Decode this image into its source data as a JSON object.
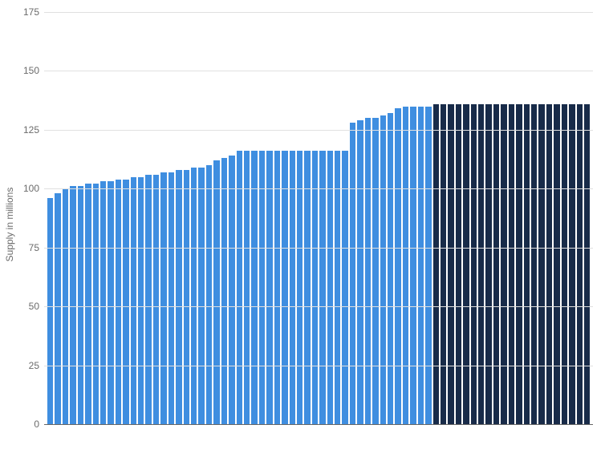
{
  "chart": {
    "type": "bar",
    "ylabel": "Supply in millions",
    "label_fontsize": 12,
    "ylim": [
      0,
      175
    ],
    "ytick_step": 25,
    "yticks": [
      0,
      25,
      50,
      75,
      100,
      125,
      150,
      175
    ],
    "background_color": "#ffffff",
    "grid_color": "#e0e0e0",
    "axis_color": "#666666",
    "tick_label_color": "#6b6b6b",
    "series": [
      {
        "value": 96,
        "color": "#3f8ee0"
      },
      {
        "value": 98,
        "color": "#3f8ee0"
      },
      {
        "value": 100,
        "color": "#3f8ee0"
      },
      {
        "value": 101,
        "color": "#3f8ee0"
      },
      {
        "value": 101,
        "color": "#3f8ee0"
      },
      {
        "value": 102,
        "color": "#3f8ee0"
      },
      {
        "value": 102,
        "color": "#3f8ee0"
      },
      {
        "value": 103,
        "color": "#3f8ee0"
      },
      {
        "value": 103,
        "color": "#3f8ee0"
      },
      {
        "value": 104,
        "color": "#3f8ee0"
      },
      {
        "value": 104,
        "color": "#3f8ee0"
      },
      {
        "value": 105,
        "color": "#3f8ee0"
      },
      {
        "value": 105,
        "color": "#3f8ee0"
      },
      {
        "value": 106,
        "color": "#3f8ee0"
      },
      {
        "value": 106,
        "color": "#3f8ee0"
      },
      {
        "value": 107,
        "color": "#3f8ee0"
      },
      {
        "value": 107,
        "color": "#3f8ee0"
      },
      {
        "value": 108,
        "color": "#3f8ee0"
      },
      {
        "value": 108,
        "color": "#3f8ee0"
      },
      {
        "value": 109,
        "color": "#3f8ee0"
      },
      {
        "value": 109,
        "color": "#3f8ee0"
      },
      {
        "value": 110,
        "color": "#3f8ee0"
      },
      {
        "value": 112,
        "color": "#3f8ee0"
      },
      {
        "value": 113,
        "color": "#3f8ee0"
      },
      {
        "value": 114,
        "color": "#3f8ee0"
      },
      {
        "value": 116,
        "color": "#3f8ee0"
      },
      {
        "value": 116,
        "color": "#3f8ee0"
      },
      {
        "value": 116,
        "color": "#3f8ee0"
      },
      {
        "value": 116,
        "color": "#3f8ee0"
      },
      {
        "value": 116,
        "color": "#3f8ee0"
      },
      {
        "value": 116,
        "color": "#3f8ee0"
      },
      {
        "value": 116,
        "color": "#3f8ee0"
      },
      {
        "value": 116,
        "color": "#3f8ee0"
      },
      {
        "value": 116,
        "color": "#3f8ee0"
      },
      {
        "value": 116,
        "color": "#3f8ee0"
      },
      {
        "value": 116,
        "color": "#3f8ee0"
      },
      {
        "value": 116,
        "color": "#3f8ee0"
      },
      {
        "value": 116,
        "color": "#3f8ee0"
      },
      {
        "value": 116,
        "color": "#3f8ee0"
      },
      {
        "value": 116,
        "color": "#3f8ee0"
      },
      {
        "value": 128,
        "color": "#3f8ee0"
      },
      {
        "value": 129,
        "color": "#3f8ee0"
      },
      {
        "value": 130,
        "color": "#3f8ee0"
      },
      {
        "value": 130,
        "color": "#3f8ee0"
      },
      {
        "value": 131,
        "color": "#3f8ee0"
      },
      {
        "value": 132,
        "color": "#3f8ee0"
      },
      {
        "value": 134,
        "color": "#3f8ee0"
      },
      {
        "value": 135,
        "color": "#3f8ee0"
      },
      {
        "value": 135,
        "color": "#3f8ee0"
      },
      {
        "value": 135,
        "color": "#3f8ee0"
      },
      {
        "value": 135,
        "color": "#3f8ee0"
      },
      {
        "value": 136,
        "color": "#182b49"
      },
      {
        "value": 136,
        "color": "#182b49"
      },
      {
        "value": 136,
        "color": "#182b49"
      },
      {
        "value": 136,
        "color": "#182b49"
      },
      {
        "value": 136,
        "color": "#182b49"
      },
      {
        "value": 136,
        "color": "#182b49"
      },
      {
        "value": 136,
        "color": "#182b49"
      },
      {
        "value": 136,
        "color": "#182b49"
      },
      {
        "value": 136,
        "color": "#182b49"
      },
      {
        "value": 136,
        "color": "#182b49"
      },
      {
        "value": 136,
        "color": "#182b49"
      },
      {
        "value": 136,
        "color": "#182b49"
      },
      {
        "value": 136,
        "color": "#182b49"
      },
      {
        "value": 136,
        "color": "#182b49"
      },
      {
        "value": 136,
        "color": "#182b49"
      },
      {
        "value": 136,
        "color": "#182b49"
      },
      {
        "value": 136,
        "color": "#182b49"
      },
      {
        "value": 136,
        "color": "#182b49"
      },
      {
        "value": 136,
        "color": "#182b49"
      },
      {
        "value": 136,
        "color": "#182b49"
      },
      {
        "value": 136,
        "color": "#182b49"
      }
    ]
  }
}
